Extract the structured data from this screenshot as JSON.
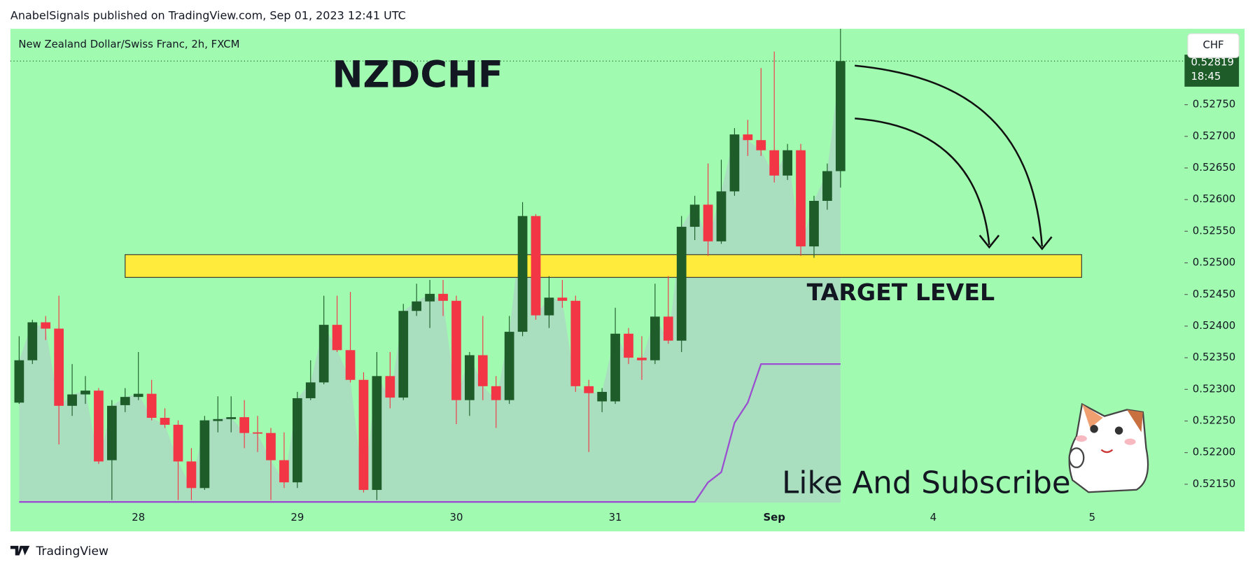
{
  "header": "AnabelSignals published on TradingView.com, Sep 01, 2023 12:41 UTC",
  "footer": "TradingView",
  "chart_data": {
    "type": "candlestick",
    "title": "NZDCHF",
    "subtitle": "New Zealand Dollar/Swiss Franc, 2h, FXCM",
    "annotations": [
      "TARGET LEVEL",
      "Like And Subscribe"
    ],
    "currency": "CHF",
    "last_price_label": "0.52819",
    "countdown": "18:45",
    "up_color": "#1e5c2a",
    "down_color": "#f23645",
    "area_color": "#a9dfbf",
    "open": [
      0.52279,
      0.52346,
      0.52406,
      0.52396,
      0.52274,
      0.52292,
      0.52298,
      0.52188,
      0.52275,
      0.52288,
      0.52293,
      0.52255,
      0.52244,
      0.52186,
      0.52144,
      0.5225,
      0.52253,
      0.52256,
      0.52232,
      0.52231,
      0.52188,
      0.52153,
      0.52286,
      0.52311,
      0.52402,
      0.52362,
      0.52315,
      0.52141,
      0.52321,
      0.52287,
      0.52424,
      0.52439,
      0.52451,
      0.5244,
      0.52283,
      0.52354,
      0.52305,
      0.52283,
      0.52391,
      0.52574,
      0.52417,
      0.52445,
      0.5244,
      0.52305,
      0.52281,
      0.52281,
      0.52388,
      0.5235,
      0.52346,
      0.52415,
      0.52377,
      0.52557,
      0.52592,
      0.52534,
      0.52613,
      0.52703,
      0.52694,
      0.52678,
      0.52638,
      0.52678,
      0.52526,
      0.52598,
      0.52645
    ],
    "high": [
      0.52384,
      0.5241,
      0.52416,
      0.52448,
      0.5234,
      0.52321,
      0.52302,
      0.52283,
      0.52302,
      0.52359,
      0.52315,
      0.5227,
      0.52251,
      0.52207,
      0.52258,
      0.52289,
      0.52289,
      0.52283,
      0.52258,
      0.52239,
      0.52232,
      0.52296,
      0.52346,
      0.52448,
      0.52448,
      0.52454,
      0.52327,
      0.52359,
      0.52359,
      0.52435,
      0.52467,
      0.52473,
      0.52473,
      0.52448,
      0.52359,
      0.52416,
      0.52321,
      0.52416,
      0.52596,
      0.52577,
      0.52479,
      0.52473,
      0.52448,
      0.52315,
      0.52302,
      0.52429,
      0.52397,
      0.52384,
      0.52467,
      0.52479,
      0.52574,
      0.52606,
      0.52657,
      0.52663,
      0.52713,
      0.52726,
      0.52808,
      0.52834,
      0.52688,
      0.52688,
      0.52606,
      0.52657,
      0.5287
    ],
    "low": [
      0.52277,
      0.5234,
      0.52378,
      0.52213,
      0.52258,
      0.52277,
      0.52182,
      0.52125,
      0.52264,
      0.52283,
      0.52251,
      0.52239,
      0.52125,
      0.52125,
      0.52141,
      0.52232,
      0.52232,
      0.52207,
      0.52201,
      0.52125,
      0.52144,
      0.52144,
      0.52283,
      0.52308,
      0.52359,
      0.52311,
      0.52137,
      0.52125,
      0.5227,
      0.52283,
      0.52416,
      0.52397,
      0.52416,
      0.52245,
      0.52258,
      0.52283,
      0.52239,
      0.52277,
      0.52384,
      0.5241,
      0.52397,
      0.52429,
      0.52296,
      0.52201,
      0.52264,
      0.52277,
      0.5234,
      0.52315,
      0.5234,
      0.52372,
      0.52359,
      0.52536,
      0.52511,
      0.5253,
      0.52606,
      0.52669,
      0.52669,
      0.52627,
      0.52631,
      0.52511,
      0.52508,
      0.52584,
      0.52619
    ],
    "close": [
      0.52346,
      0.52406,
      0.52396,
      0.52274,
      0.52292,
      0.52298,
      0.52186,
      0.52274,
      0.52288,
      0.52293,
      0.52255,
      0.52244,
      0.52186,
      0.52144,
      0.52251,
      0.52253,
      0.52256,
      0.52231,
      0.5223,
      0.52188,
      0.52153,
      0.52286,
      0.52311,
      0.52402,
      0.52362,
      0.52315,
      0.52141,
      0.52321,
      0.52287,
      0.52424,
      0.52439,
      0.52451,
      0.5244,
      0.52283,
      0.52354,
      0.52305,
      0.52283,
      0.52391,
      0.52574,
      0.52417,
      0.52445,
      0.5244,
      0.52305,
      0.52294,
      0.52296,
      0.52388,
      0.5235,
      0.52346,
      0.52415,
      0.52377,
      0.52557,
      0.52592,
      0.52534,
      0.52613,
      0.52703,
      0.52694,
      0.52678,
      0.52638,
      0.52678,
      0.52526,
      0.52598,
      0.52645,
      0.52819
    ],
    "indicator": {
      "color": "#9b4fd0",
      "values": [
        0.52122,
        0.52122,
        0.52122,
        0.52122,
        0.52122,
        0.52122,
        0.52122,
        0.52122,
        0.52122,
        0.52122,
        0.52122,
        0.52122,
        0.52122,
        0.52122,
        0.52122,
        0.52122,
        0.52122,
        0.52122,
        0.52122,
        0.52122,
        0.52122,
        0.52122,
        0.52122,
        0.52122,
        0.52122,
        0.52122,
        0.52122,
        0.52122,
        0.52122,
        0.52122,
        0.52122,
        0.52122,
        0.52122,
        0.52122,
        0.52122,
        0.52122,
        0.52122,
        0.52122,
        0.52122,
        0.52122,
        0.52122,
        0.52122,
        0.52122,
        0.52122,
        0.52122,
        0.52122,
        0.52122,
        0.52122,
        0.52122,
        0.52122,
        0.52122,
        0.52122,
        0.52153,
        0.52169,
        0.52247,
        0.52279,
        0.5234,
        0.5234,
        0.5234,
        0.5234,
        0.5234,
        0.5234,
        0.5234
      ]
    },
    "target_zone": {
      "top": 0.52513,
      "bottom": 0.52477,
      "x_start": 8,
      "x_end": 80.2,
      "color": "#ffeb3b"
    },
    "xlim": [
      -0.66,
      87.97
    ],
    "xticks": [
      {
        "value": 9,
        "label": "28"
      },
      {
        "value": 21,
        "label": "29"
      },
      {
        "value": 33,
        "label": "30"
      },
      {
        "value": 45,
        "label": "31"
      },
      {
        "value": 57,
        "label": "Sep"
      },
      {
        "value": 69,
        "label": "4"
      },
      {
        "value": 81,
        "label": "5"
      }
    ],
    "ylim": [
      0.52121,
      0.5287
    ],
    "yticks": [
      {
        "value": 0.5215,
        "label": "0.52150"
      },
      {
        "value": 0.522,
        "label": "0.52200"
      },
      {
        "value": 0.5225,
        "label": "0.52250"
      },
      {
        "value": 0.523,
        "label": "0.52300"
      },
      {
        "value": 0.5235,
        "label": "0.52350"
      },
      {
        "value": 0.524,
        "label": "0.52400"
      },
      {
        "value": 0.5245,
        "label": "0.52450"
      },
      {
        "value": 0.525,
        "label": "0.52500"
      },
      {
        "value": 0.5255,
        "label": "0.52550"
      },
      {
        "value": 0.526,
        "label": "0.52600"
      },
      {
        "value": 0.5265,
        "label": "0.52650"
      },
      {
        "value": 0.527,
        "label": "0.52700"
      },
      {
        "value": 0.5275,
        "label": "0.52750"
      }
    ]
  }
}
